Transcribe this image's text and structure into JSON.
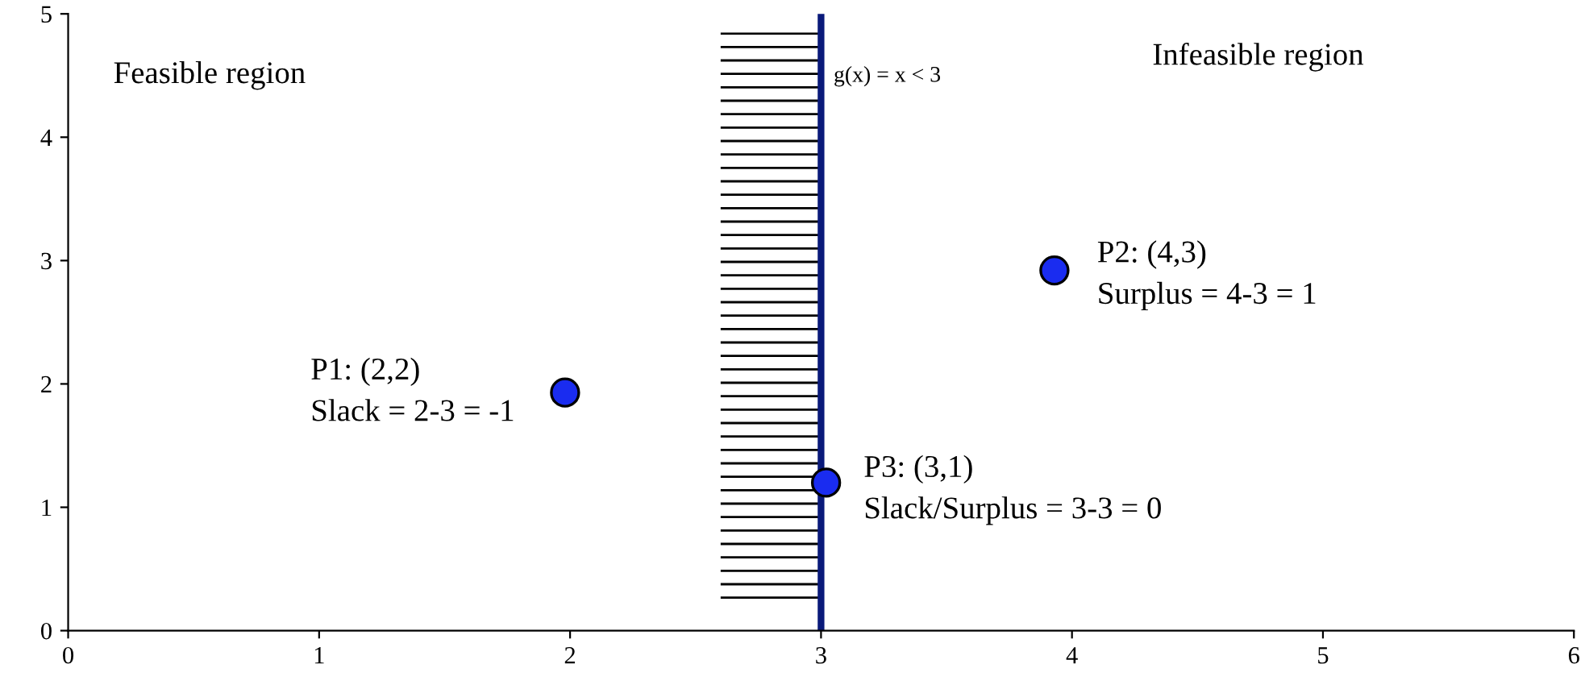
{
  "chart_data": {
    "type": "scatter",
    "x": [
      1.98,
      3.93,
      3.02
    ],
    "series": [
      {
        "color": "#1a2cf0",
        "values": [
          1.93,
          2.92,
          1.2
        ]
      }
    ],
    "marker": "circle",
    "xlim": [
      0,
      6
    ],
    "ylim": [
      0,
      5
    ],
    "xticks": [
      0,
      1,
      2,
      3,
      4,
      5,
      6
    ],
    "yticks": [
      0,
      1,
      2,
      3,
      4,
      5
    ],
    "grid": false,
    "ref_lines": [
      {
        "axis": "x",
        "value": 3,
        "label": "g(x) = x < 3",
        "color": "#0a1a7a",
        "line_style": "solid"
      }
    ],
    "bands": [
      {
        "axis": "x",
        "from": 2.6,
        "to": 3,
        "label": null,
        "color": "#000000"
      }
    ],
    "annotations": [
      "Feasible region",
      "Infeasible region",
      {
        "text": "P1: (2,2)\nSlack = 2-3 = -1",
        "x": 1.98,
        "y": 1.93
      },
      {
        "text": "P2: (4,3)\nSurplus = 4-3 = 1",
        "x": 3.93,
        "y": 2.92
      },
      {
        "text": "P3: (3,1)\nSlack/Surplus = 3-3 = 0",
        "x": 3.02,
        "y": 1.2
      }
    ]
  }
}
